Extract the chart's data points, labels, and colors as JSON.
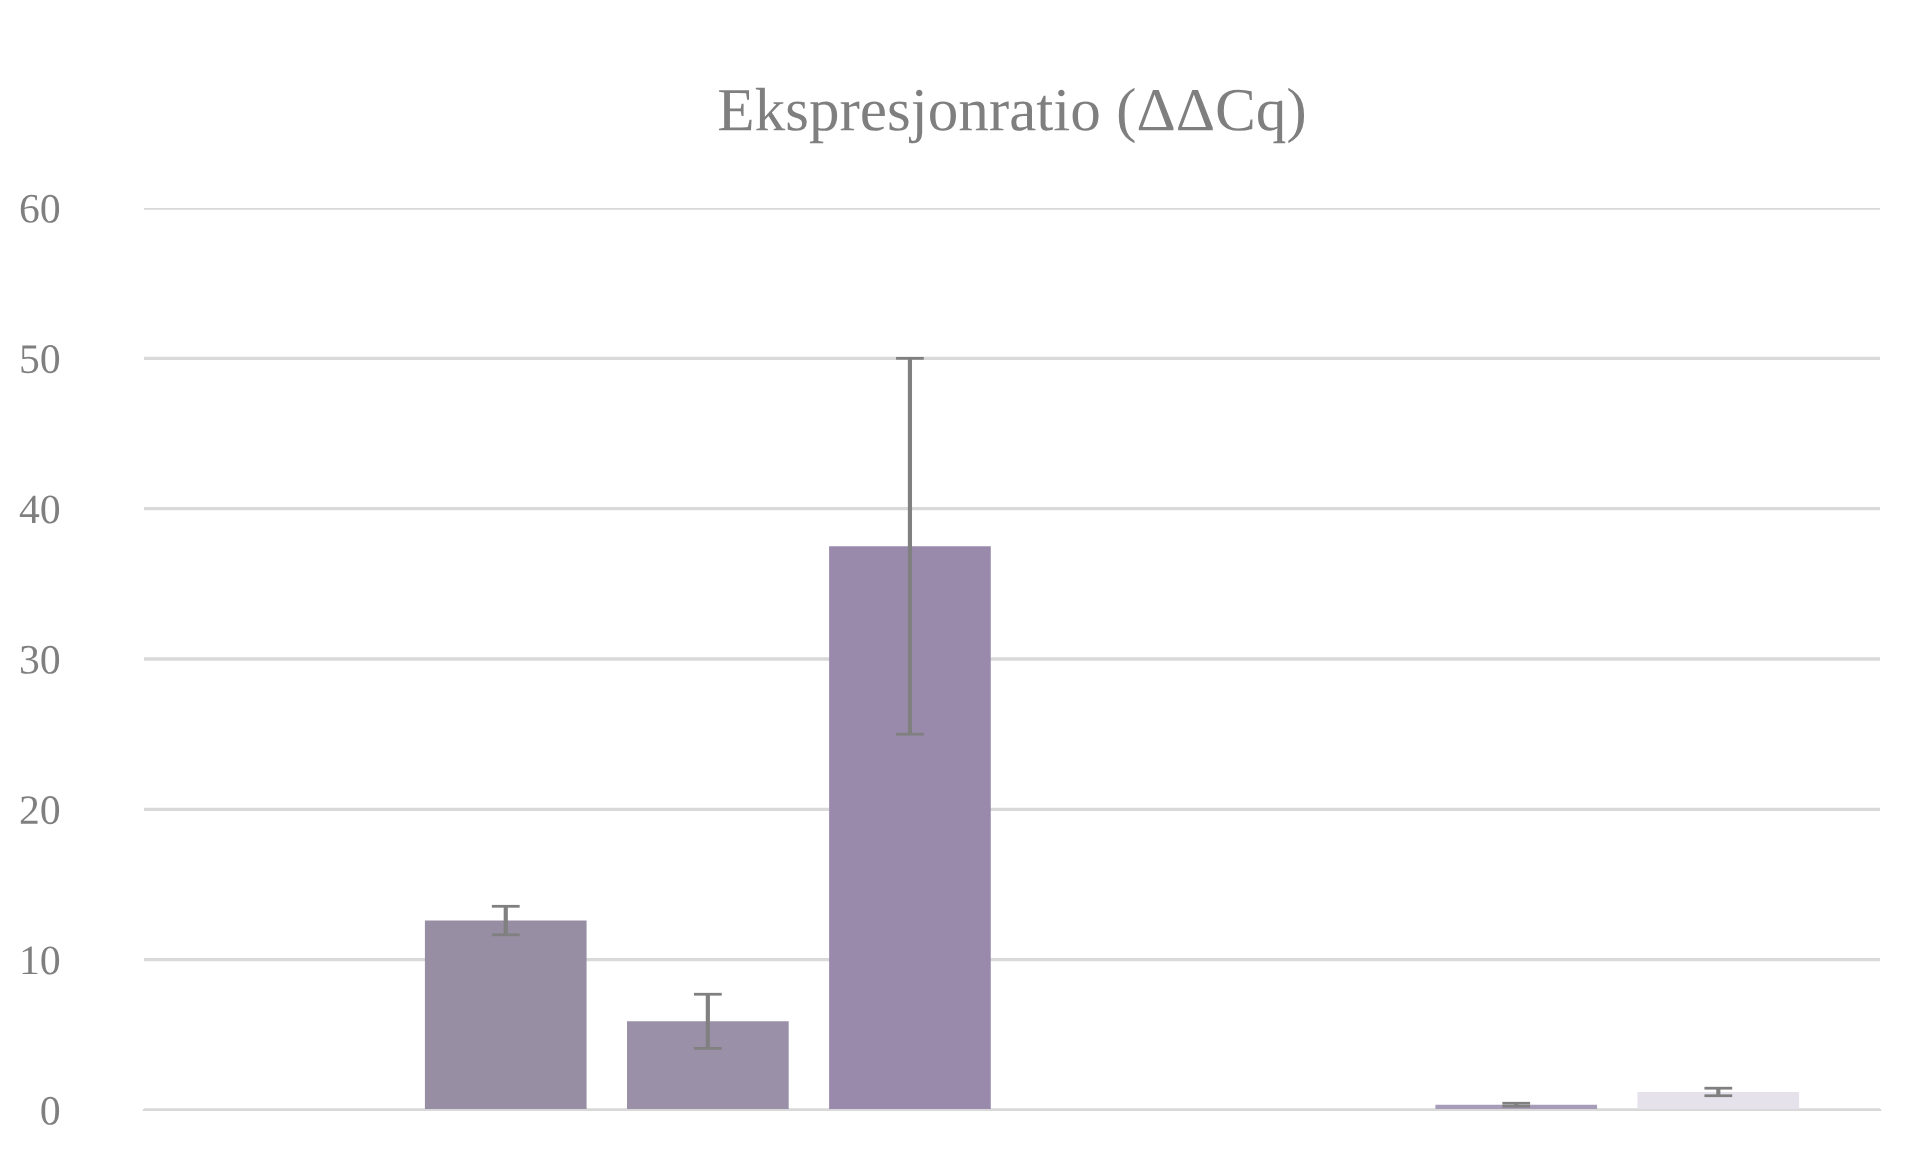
{
  "chart_data": {
    "type": "bar",
    "title": "Ekspresjonratio (ΔΔCq)",
    "categories": [
      null,
      null,
      null,
      null,
      null,
      null,
      null,
      null
    ],
    "values": [
      null,
      12.6,
      5.9,
      37.5,
      null,
      null,
      0.35,
      1.2
    ],
    "errors": [
      null,
      0.95,
      1.8,
      12.5,
      null,
      null,
      0.1,
      0.25
    ],
    "colors": [
      "#978ea3",
      "#978ea3",
      "#9a90a8",
      "#998aab",
      "#978ea3",
      "#978ea3",
      "#a89db8",
      "#e6e2ec"
    ],
    "ylim": [
      0,
      60
    ],
    "yticks": [
      0,
      10,
      20,
      30,
      40,
      50,
      60
    ],
    "grid": "y"
  }
}
